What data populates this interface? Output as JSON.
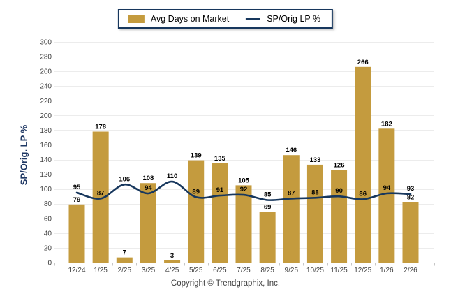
{
  "legend": {
    "bar_label": "Avg Days on Market",
    "line_label": "SP/Orig LP %"
  },
  "y_axis_title": "SP/Orig. LP %",
  "footer": "Copyright © Trendgraphix, Inc.",
  "colors": {
    "bar": "#C49B3E",
    "line": "#17375D",
    "grid": "#ECECEC",
    "axis": "#C6C6C6",
    "tick_text": "#3F3F3F",
    "value_text": "#000000",
    "axis_title_text": "#1F3864",
    "legend_border": "#17375D"
  },
  "chart_data": {
    "type": "bar",
    "subtype": "bar+line combo",
    "categories": [
      "12/24",
      "1/25",
      "2/25",
      "3/25",
      "4/25",
      "5/25",
      "6/25",
      "7/25",
      "8/25",
      "9/25",
      "10/25",
      "11/25",
      "12/25",
      "1/26",
      "2/26"
    ],
    "series": [
      {
        "name": "Avg Days on Market",
        "type": "bar",
        "values": [
          79,
          178,
          7,
          108,
          3,
          139,
          135,
          105,
          69,
          146,
          133,
          126,
          266,
          182,
          82
        ]
      },
      {
        "name": "SP/Orig LP %",
        "type": "line",
        "values": [
          95,
          87,
          106,
          94,
          110,
          89,
          91,
          92,
          85,
          87,
          88,
          90,
          86,
          94,
          93
        ]
      }
    ],
    "title": "",
    "xlabel": "",
    "ylabel": "SP/Orig. LP %",
    "ylim": [
      0,
      300
    ],
    "y_tick_step": 20,
    "grid": true,
    "legend_position": "top-center",
    "data_labels": true
  }
}
